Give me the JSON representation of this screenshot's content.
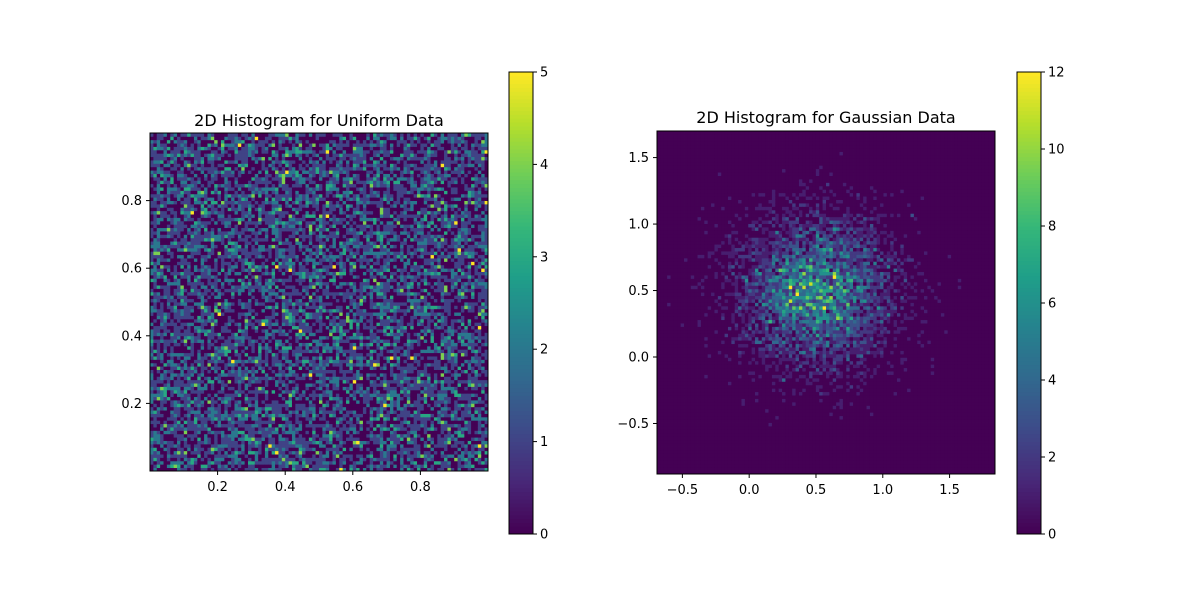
{
  "chart_data": [
    {
      "type": "heatmap",
      "title": "2D Histogram for Uniform Data",
      "xlabel": "",
      "ylabel": "",
      "bins": [
        100,
        100
      ],
      "xlim": [
        0.0,
        1.0
      ],
      "ylim": [
        0.0,
        1.0
      ],
      "x_ticks": [
        0.2,
        0.4,
        0.6,
        0.8
      ],
      "x_tick_labels": [
        "0.2",
        "0.4",
        "0.6",
        "0.8"
      ],
      "y_ticks": [
        0.2,
        0.4,
        0.6,
        0.8
      ],
      "y_tick_labels": [
        "0.2",
        "0.4",
        "0.6",
        "0.8"
      ],
      "colormap": "viridis",
      "distribution": {
        "kind": "uniform",
        "low": 0.0,
        "high": 1.0
      },
      "count_mean": 1.0,
      "colorbar": {
        "range": [
          0,
          5
        ],
        "ticks": [
          0,
          1,
          2,
          3,
          4,
          5
        ],
        "tick_labels": [
          "0",
          "1",
          "2",
          "3",
          "4",
          "5"
        ]
      },
      "high_count_cells": [
        {
          "x": 0.77,
          "y": 0.33,
          "count": 5
        },
        {
          "x": 0.4,
          "y": 0.93,
          "count": 4
        },
        {
          "x": 0.65,
          "y": 0.84,
          "count": 4
        },
        {
          "x": 0.93,
          "y": 0.48,
          "count": 4
        },
        {
          "x": 0.79,
          "y": 0.26,
          "count": 4
        },
        {
          "x": 0.89,
          "y": 0.34,
          "count": 4
        },
        {
          "x": 0.55,
          "y": 0.04,
          "count": 4
        },
        {
          "x": 0.06,
          "y": 0.91,
          "count": 3
        },
        {
          "x": 0.24,
          "y": 0.67,
          "count": 3
        },
        {
          "x": 0.5,
          "y": 0.48,
          "count": 3
        },
        {
          "x": 0.55,
          "y": 0.37,
          "count": 3
        },
        {
          "x": 0.26,
          "y": 0.41,
          "count": 3
        },
        {
          "x": 0.98,
          "y": 0.61,
          "count": 3
        },
        {
          "x": 0.37,
          "y": 0.54,
          "count": 3
        },
        {
          "x": 0.13,
          "y": 0.15,
          "count": 3
        },
        {
          "x": 0.83,
          "y": 0.12,
          "count": 3
        }
      ]
    },
    {
      "type": "heatmap",
      "title": "2D Histogram for Gaussian Data",
      "xlabel": "",
      "ylabel": "",
      "bins": [
        100,
        100
      ],
      "xlim": [
        -0.69,
        1.84
      ],
      "ylim": [
        -0.88,
        1.7
      ],
      "x_ticks": [
        -0.5,
        0.0,
        0.5,
        1.0,
        1.5
      ],
      "x_tick_labels": [
        "−0.5",
        "0.0",
        "0.5",
        "1.0",
        "1.5"
      ],
      "y_ticks": [
        -0.5,
        0.0,
        0.5,
        1.0,
        1.5
      ],
      "y_tick_labels": [
        "−0.5",
        "0.0",
        "0.5",
        "1.0",
        "1.5"
      ],
      "colormap": "viridis",
      "distribution": {
        "kind": "gaussian",
        "mean": [
          0.5,
          0.5
        ],
        "std": [
          0.3,
          0.3
        ]
      },
      "peak_count": 12,
      "colorbar": {
        "range": [
          0,
          12
        ],
        "ticks": [
          0,
          2,
          4,
          6,
          8,
          10,
          12
        ],
        "tick_labels": [
          "0",
          "2",
          "4",
          "6",
          "8",
          "10",
          "12"
        ]
      },
      "high_count_cells": [
        {
          "x": 0.57,
          "y": 0.37,
          "count": 12
        },
        {
          "x": 0.47,
          "y": 0.55,
          "count": 11
        },
        {
          "x": 0.4,
          "y": 0.62,
          "count": 10
        },
        {
          "x": 0.63,
          "y": 0.64,
          "count": 10
        },
        {
          "x": 0.38,
          "y": 0.38,
          "count": 10
        },
        {
          "x": 0.66,
          "y": 0.55,
          "count": 9
        },
        {
          "x": 0.5,
          "y": 0.46,
          "count": 9
        },
        {
          "x": 0.35,
          "y": 0.5,
          "count": 9
        },
        {
          "x": 0.62,
          "y": 0.8,
          "count": 8
        },
        {
          "x": 0.3,
          "y": 0.55,
          "count": 8
        }
      ]
    }
  ]
}
